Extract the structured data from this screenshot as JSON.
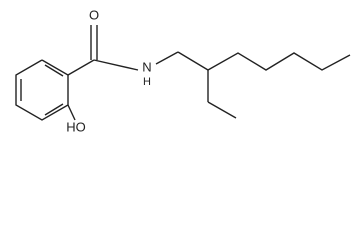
{
  "atoms": {
    "oxygen": "O",
    "nitrogen": "N",
    "hydrogen": "H",
    "hydroxyl": "HO"
  }
}
